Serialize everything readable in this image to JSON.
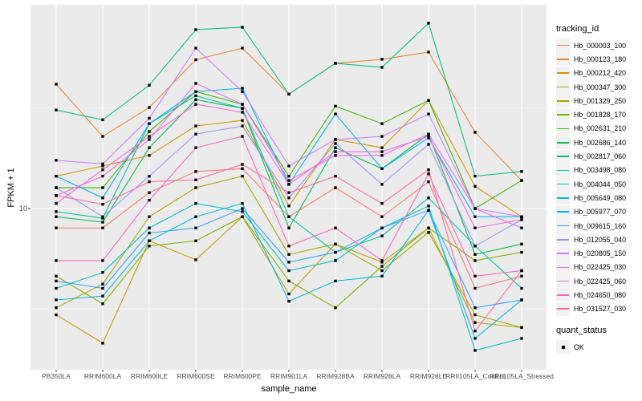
{
  "chart_data": {
    "type": "line",
    "xlabel": "sample_name",
    "ylabel": "FPKM + 1",
    "y_scale": "log10",
    "y_major_ticks": [
      10
    ],
    "y_tick_labels": [
      "10"
    ],
    "y_minor_ticks": [
      3.162,
      31.62
    ],
    "grid": true,
    "legend_position": "right",
    "legend_title": "tracking_id",
    "quant_legend_title": "quant_status",
    "quant_status_options": [
      "OK"
    ],
    "categories": [
      "PB350LA",
      "RRIM600LA",
      "RRIM600LE",
      "RRIM600SE",
      "RRIM600PE",
      "RRIM901LA",
      "RRIM928BA",
      "RRIM928LA",
      "RRIM928LE",
      "RRII105LA_Control",
      "RRII105LA_Stressed"
    ],
    "series": [
      {
        "name": "Hb_000003_100",
        "color": "#F8766D",
        "values": [
          8.0,
          8.0,
          12.0,
          15.3,
          15.8,
          9.1,
          12.7,
          9.1,
          13.6,
          4.0,
          4.6
        ]
      },
      {
        "name": "Hb_000123_180",
        "color": "#EA8331",
        "values": [
          41.7,
          22.9,
          31.9,
          55.2,
          63.1,
          37.2,
          53.0,
          55.5,
          60.3,
          24.0,
          13.8
        ]
      },
      {
        "name": "Hb_000212_420",
        "color": "#D89000",
        "values": [
          14.5,
          16.3,
          18.4,
          25.8,
          27.5,
          10.3,
          22.1,
          20.1,
          34.6,
          12.9,
          9.1
        ]
      },
      {
        "name": "Hb_000347_300",
        "color": "#C09B00",
        "values": [
          2.95,
          2.13,
          6.9,
          5.55,
          9.1,
          3.75,
          6.65,
          5.4,
          8.0,
          2.7,
          2.55
        ]
      },
      {
        "name": "Hb_001329_250",
        "color": "#A3A500",
        "values": [
          3.2,
          4.2,
          9.1,
          12.7,
          14.5,
          5.9,
          6.65,
          4.9,
          7.6,
          2.95,
          2.55
        ]
      },
      {
        "name": "Hb_001828_170",
        "color": "#7CAE00",
        "values": [
          4.6,
          3.35,
          6.5,
          6.9,
          9.1,
          4.35,
          3.2,
          5.15,
          8.0,
          5.5,
          6.05
        ]
      },
      {
        "name": "Hb_002631_210",
        "color": "#39B600",
        "values": [
          12.7,
          12.7,
          24.2,
          38.3,
          33.1,
          14.5,
          32.4,
          26.5,
          34.6,
          10.0,
          13.8
        ]
      },
      {
        "name": "Hb_002686_140",
        "color": "#00BB4E",
        "values": [
          9.1,
          8.55,
          20.1,
          34.9,
          31.6,
          8.0,
          20.1,
          15.8,
          23.5,
          5.9,
          6.65
        ]
      },
      {
        "name": "Hb_002817_060",
        "color": "#00BF7D",
        "values": [
          31.0,
          27.7,
          41.2,
          78.0,
          80.2,
          37.2,
          53.0,
          50.6,
          84.0,
          14.5,
          15.3
        ]
      },
      {
        "name": "Hb_003498_080",
        "color": "#00C1A3",
        "values": [
          9.65,
          8.95,
          26.5,
          36.5,
          31.6,
          9.1,
          6.05,
          7.3,
          11.3,
          6.5,
          4.0
        ]
      },
      {
        "name": "Hb_004044_050",
        "color": "#00BFC4",
        "values": [
          4.0,
          4.8,
          8.0,
          10.6,
          9.65,
          4.9,
          5.5,
          8.0,
          10.3,
          1.96,
          2.25
        ]
      },
      {
        "name": "Hb_005649_080",
        "color": "#00BAE0",
        "values": [
          3.5,
          3.66,
          6.9,
          9.1,
          10.6,
          3.45,
          4.35,
          4.6,
          9.8,
          2.25,
          3.5
        ]
      },
      {
        "name": "Hb_005977_070",
        "color": "#00B0F6",
        "values": [
          14.5,
          11.3,
          26.5,
          38.3,
          39.8,
          13.2,
          29.6,
          15.8,
          22.5,
          9.1,
          9.1
        ]
      },
      {
        "name": "Hb_009615_160",
        "color": "#35A2FF",
        "values": [
          4.35,
          4.0,
          7.55,
          8.0,
          10.0,
          5.4,
          6.05,
          8.0,
          9.8,
          3.2,
          3.5
        ]
      },
      {
        "name": "Hb_012055_040",
        "color": "#9590FF",
        "values": [
          12.7,
          9.1,
          14.5,
          23.5,
          25.8,
          11.3,
          21.1,
          13.2,
          20.9,
          6.5,
          8.8
        ]
      },
      {
        "name": "Hb_020805_150",
        "color": "#C77CFF",
        "values": [
          17.4,
          16.7,
          28.2,
          63.1,
          38.3,
          16.3,
          22.1,
          22.9,
          29.6,
          10.0,
          9.1
        ]
      },
      {
        "name": "Hb_022425_030",
        "color": "#E76BF3",
        "values": [
          11.6,
          14.5,
          22.1,
          42.1,
          33.1,
          13.8,
          18.4,
          18.4,
          23.5,
          10.0,
          8.0
        ]
      },
      {
        "name": "Hb_022425_060",
        "color": "#FA62DB",
        "values": [
          10.6,
          15.6,
          22.9,
          33.1,
          30.2,
          13.2,
          19.2,
          19.2,
          22.9,
          8.0,
          8.8
        ]
      },
      {
        "name": "Hb_024650_080",
        "color": "#FF62BC",
        "values": [
          5.5,
          5.5,
          11.0,
          20.1,
          22.9,
          6.5,
          8.0,
          5.5,
          14.9,
          4.6,
          4.9
        ]
      },
      {
        "name": "Hb_031527_030",
        "color": "#FF6A98",
        "values": [
          11.6,
          10.5,
          13.6,
          13.9,
          16.6,
          12.0,
          14.5,
          10.6,
          15.6,
          2.45,
          4.9
        ]
      }
    ],
    "colors": {
      "panel_background": "#EBEBEB",
      "gridline": "#FFFFFF",
      "tick_text": "#4D4D4D",
      "axis_title_text": "#000000",
      "marker": "#000000",
      "legend_key_background": "#F2F2F2"
    }
  }
}
